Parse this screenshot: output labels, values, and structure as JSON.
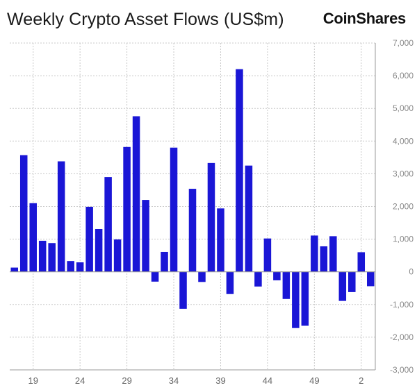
{
  "header": {
    "title": "Weekly Crypto Asset Flows (US$m)",
    "brand": "CoinShares"
  },
  "colors": {
    "bar": "#1a16d6",
    "grid": "#c8c8c8",
    "axis": "#9a9a9a"
  },
  "chart_data": {
    "type": "bar",
    "title": "Weekly Crypto Asset Flows (US$m)",
    "xlabel": "",
    "ylabel": "",
    "ylim": [
      -3000,
      7000
    ],
    "yticks": [
      7000,
      6000,
      5000,
      4000,
      3000,
      2000,
      1000,
      0,
      -1000,
      -2000,
      -3000
    ],
    "ytick_labels": [
      "7,000",
      "6,000",
      "5,000",
      "4,000",
      "3,000",
      "2,000",
      "1,000",
      "0",
      "-1,000",
      "-2,000",
      "-3,000"
    ],
    "grid": true,
    "categories": [
      17,
      18,
      19,
      20,
      21,
      22,
      23,
      24,
      25,
      26,
      27,
      28,
      29,
      30,
      31,
      32,
      33,
      34,
      35,
      36,
      37,
      38,
      39,
      40,
      41,
      42,
      43,
      44,
      45,
      46,
      47,
      48,
      49,
      50,
      51,
      52,
      1,
      2,
      3
    ],
    "values": [
      130,
      3570,
      2100,
      950,
      880,
      3380,
      330,
      290,
      1990,
      1310,
      2900,
      990,
      3820,
      4760,
      2200,
      -300,
      610,
      3800,
      -1130,
      2540,
      -310,
      3330,
      1940,
      -680,
      6200,
      3250,
      -450,
      1020,
      -260,
      -830,
      -1720,
      -1650,
      1110,
      780,
      1090,
      -890,
      -620,
      600,
      -440
    ],
    "xtick_labels": [
      "19",
      "24",
      "29",
      "34",
      "39",
      "44",
      "49",
      "2"
    ],
    "xtick_positions": [
      2,
      7,
      12,
      17,
      22,
      27,
      32,
      37
    ]
  }
}
